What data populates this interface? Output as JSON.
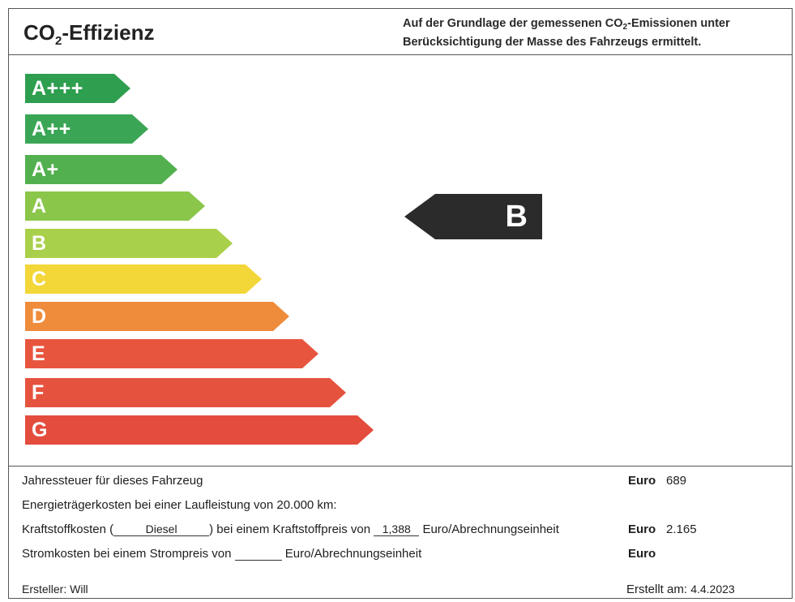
{
  "header": {
    "title_main": "CO",
    "title_sub": "2",
    "title_rest": "-Effizienz",
    "note_line1_a": "Auf der Grundlage der gemessenen CO",
    "note_line1_sub": "2",
    "note_line1_b": "-Emissionen unter",
    "note_line2": "Berücksichtigung der Masse des Fahrzeugs ermittelt."
  },
  "scale": {
    "classes": [
      {
        "label": "A+++",
        "color": "#2e9e4f"
      },
      {
        "label": "A++",
        "color": "#3aa655"
      },
      {
        "label": "A+",
        "color": "#52b04f"
      },
      {
        "label": "A",
        "color": "#8ac64a"
      },
      {
        "label": "B",
        "color": "#a9d04a"
      },
      {
        "label": "C",
        "color": "#f3d638"
      },
      {
        "label": "D",
        "color": "#ef8c3c"
      },
      {
        "label": "E",
        "color": "#e8553f"
      },
      {
        "label": "F",
        "color": "#e5533e"
      },
      {
        "label": "G",
        "color": "#e44c3e"
      }
    ],
    "current_class": "B",
    "indicator_color": "#2b2b2b"
  },
  "footer": {
    "tax_label": "Jahressteuer für dieses Fahrzeug",
    "tax_currency": "Euro",
    "tax_amount": "689",
    "energy_costs_label": "Energieträgerkosten bei einer Laufleistung von 20.000 km:",
    "fuel_label_a": "Kraftstoffkosten (",
    "fuel_type": "Diesel",
    "fuel_label_b": ") bei einem Kraftstoffpreis von",
    "fuel_price": "1,388",
    "fuel_label_c": "Euro/Abrechnungseinheit",
    "fuel_currency": "Euro",
    "fuel_amount": "2.165",
    "power_label_a": "Stromkosten bei einem Strompreis von",
    "power_price": "",
    "power_label_b": "Euro/Abrechnungseinheit",
    "power_currency": "Euro",
    "creator_label": "Ersteller: Will",
    "created_label": "Erstellt am:",
    "created_date": "4.4.2023"
  }
}
